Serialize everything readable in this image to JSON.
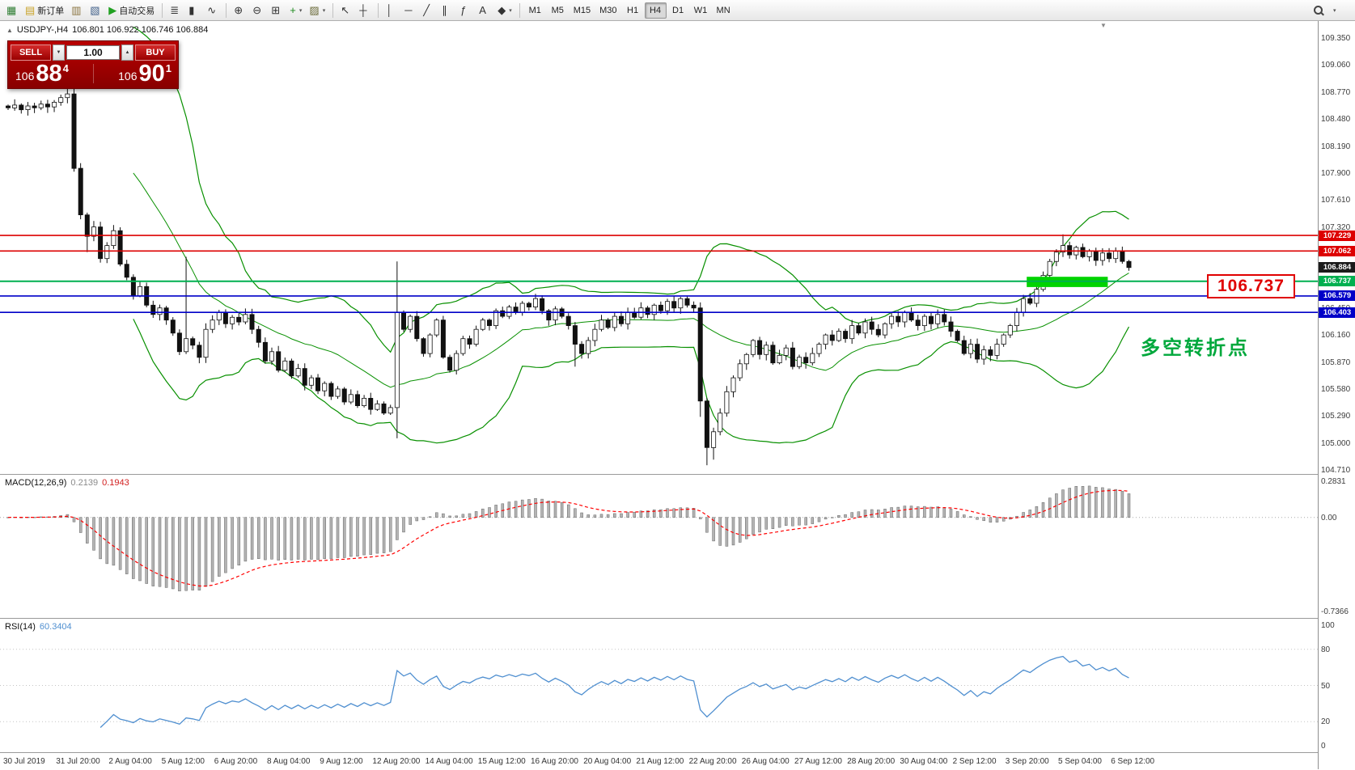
{
  "toolbar": {
    "items": [
      {
        "name": "new-chart-icon",
        "glyph": "▦",
        "color": "#2e7d32"
      },
      {
        "name": "new-order-button",
        "glyph": "▤",
        "color": "#c8a227",
        "label": "新订单"
      },
      {
        "name": "profiles-icon",
        "glyph": "▥",
        "color": "#8a7440"
      },
      {
        "name": "data-window-icon",
        "glyph": "▧",
        "color": "#46648c"
      },
      {
        "name": "autotrading-button",
        "glyph": "▶",
        "color": "#21a121",
        "label": "自动交易"
      },
      {
        "sep": true
      },
      {
        "name": "bar-chart-icon",
        "glyph": "≣",
        "color": "#333333"
      },
      {
        "name": "candlestick-chart-icon",
        "glyph": "▮",
        "color": "#333333"
      },
      {
        "name": "line-chart-icon",
        "glyph": "∿",
        "color": "#333333"
      },
      {
        "sep": true
      },
      {
        "name": "zoom-in-icon",
        "glyph": "⊕",
        "color": "#333333"
      },
      {
        "name": "zoom-out-icon",
        "glyph": "⊖",
        "color": "#333333"
      },
      {
        "name": "tile-windows-icon",
        "glyph": "⊞",
        "color": "#333333"
      },
      {
        "name": "indicators-icon",
        "glyph": "+",
        "color": "#1d8a1d",
        "caret": true
      },
      {
        "name": "templates-icon",
        "glyph": "▨",
        "color": "#6b6b3a",
        "caret": true
      },
      {
        "sep": true
      },
      {
        "name": "cursor-icon",
        "glyph": "↖",
        "color": "#333333"
      },
      {
        "name": "crosshair-icon",
        "glyph": "┼",
        "color": "#333333"
      },
      {
        "sep": true
      },
      {
        "name": "vertical-line-icon",
        "glyph": "│",
        "color": "#333333"
      },
      {
        "name": "horizontal-line-icon",
        "glyph": "─",
        "color": "#333333"
      },
      {
        "name": "trendline-icon",
        "glyph": "╱",
        "color": "#333333"
      },
      {
        "name": "channel-icon",
        "glyph": "∥",
        "color": "#333333"
      },
      {
        "name": "fibonacci-icon",
        "glyph": "ƒ",
        "color": "#333333"
      },
      {
        "name": "text-icon",
        "glyph": "A",
        "color": "#333333"
      },
      {
        "name": "arrows-icon",
        "glyph": "◆",
        "color": "#333333",
        "caret": true
      },
      {
        "sep": true
      }
    ],
    "timeframes": [
      "M1",
      "M5",
      "M15",
      "M30",
      "H1",
      "H4",
      "D1",
      "W1",
      "MN"
    ],
    "active_timeframe": "H4"
  },
  "icons": {
    "spin_up": "▲",
    "spin_down": "▼",
    "title_arrow": "▲",
    "shift_marker": "▼",
    "caret": "▾"
  },
  "chart": {
    "symbol_title": "USDJPY-,H4",
    "ohlc_text": "106.801 106.922 106.746 106.884",
    "trade_panel": {
      "sell_label": "SELL",
      "buy_label": "BUY",
      "lot": "1.00",
      "bid_small": "106",
      "bid_big": "88",
      "bid_sup": "4",
      "ask_small": "106",
      "ask_big": "90",
      "ask_sup": "1"
    },
    "annotations": {
      "callout_price": "106.737",
      "cn_note": "多空转折点"
    },
    "hlines": [
      {
        "price": 107.229,
        "label": "107.229",
        "color": "#dd0000",
        "width": 1.6
      },
      {
        "price": 107.062,
        "label": "107.062",
        "color": "#dd0000",
        "width": 1.6
      },
      {
        "price": 106.737,
        "label": "106.737",
        "color": "#00b050",
        "width": 2
      },
      {
        "price": 106.579,
        "label": "106.579",
        "color": "#0000c8",
        "width": 1.6
      },
      {
        "price": 106.403,
        "label": "106.403",
        "color": "#0000c8",
        "width": 1.6
      }
    ],
    "current_price": {
      "price": 106.884,
      "label": "106.884",
      "color": "#1b1b1b"
    },
    "price_ticks": [
      "109.350",
      "109.060",
      "108.770",
      "108.480",
      "108.190",
      "107.900",
      "107.610",
      "107.320",
      "107.030",
      "106.740",
      "106.450",
      "106.160",
      "105.870",
      "105.580",
      "105.290",
      "105.000",
      "104.710"
    ],
    "zone": {
      "price_top": 106.785,
      "price_bottom": 106.675,
      "from_index": 154.5,
      "to_index": 166.8,
      "color": "#00d300"
    }
  },
  "indicators": {
    "macd": {
      "label": "MACD(12,26,9)",
      "value_main": "0.2139",
      "value_signal": "0.1943",
      "scale_top": "0.2831",
      "scale_zero": "0.00",
      "scale_bottom": "-0.7366"
    },
    "rsi": {
      "label": "RSI(14)",
      "value": "60.3404",
      "ticks": [
        "100",
        "80",
        "50",
        "20",
        "0"
      ]
    }
  },
  "time_axis": {
    "label_every": 8,
    "labels": [
      "30 Jul 2019",
      "31 Jul 20:00",
      "2 Aug 04:00",
      "5 Aug 12:00",
      "6 Aug 20:00",
      "8 Aug 04:00",
      "9 Aug 12:00",
      "12 Aug 20:00",
      "14 Aug 04:00",
      "15 Aug 12:00",
      "16 Aug 20:00",
      "20 Aug 04:00",
      "21 Aug 12:00",
      "22 Aug 20:00",
      "26 Aug 04:00",
      "27 Aug 12:00",
      "28 Aug 20:00",
      "30 Aug 04:00",
      "2 Sep 12:00",
      "3 Sep 20:00",
      "5 Sep 04:00",
      "6 Sep 12:00"
    ]
  },
  "chart_data": {
    "type": "candlestick+indicators",
    "symbol": "USDJPY",
    "timeframe": "H4",
    "price_range": [
      104.71,
      109.35
    ],
    "closes": [
      108.6,
      108.63,
      108.58,
      108.62,
      108.6,
      108.64,
      108.61,
      108.66,
      108.71,
      108.75,
      107.95,
      107.45,
      107.22,
      107.32,
      106.98,
      107.12,
      107.28,
      106.92,
      106.78,
      106.58,
      106.68,
      106.48,
      106.38,
      106.45,
      106.32,
      106.18,
      105.98,
      106.12,
      106.05,
      105.92,
      106.22,
      106.32,
      106.4,
      106.28,
      106.35,
      106.3,
      106.38,
      106.22,
      106.08,
      105.88,
      105.98,
      105.78,
      105.88,
      105.72,
      105.8,
      105.62,
      105.7,
      105.56,
      105.64,
      105.5,
      105.58,
      105.44,
      105.52,
      105.4,
      105.48,
      105.36,
      105.42,
      105.32,
      105.38,
      106.4,
      106.22,
      106.36,
      106.12,
      105.96,
      106.16,
      106.32,
      105.92,
      105.78,
      105.96,
      106.12,
      106.06,
      106.22,
      106.32,
      106.26,
      106.42,
      106.36,
      106.46,
      106.4,
      106.5,
      106.46,
      106.55,
      106.42,
      106.32,
      106.44,
      106.36,
      106.26,
      106.06,
      105.96,
      106.1,
      106.22,
      106.32,
      106.24,
      106.36,
      106.28,
      106.4,
      106.35,
      106.45,
      106.38,
      106.48,
      106.42,
      106.52,
      106.45,
      106.55,
      106.48,
      106.45,
      105.45,
      104.95,
      105.12,
      105.32,
      105.55,
      105.7,
      105.85,
      105.95,
      106.1,
      105.95,
      106.05,
      105.86,
      105.94,
      106.02,
      105.82,
      105.92,
      105.86,
      105.96,
      106.06,
      106.16,
      106.1,
      106.2,
      106.12,
      106.26,
      106.18,
      106.3,
      106.22,
      106.16,
      106.28,
      106.36,
      106.3,
      106.4,
      106.32,
      106.26,
      106.36,
      106.28,
      106.38,
      106.3,
      106.2,
      106.1,
      105.96,
      106.06,
      105.9,
      106.0,
      105.94,
      106.06,
      106.16,
      106.26,
      106.4,
      106.55,
      106.5,
      106.65,
      106.8,
      106.95,
      107.05,
      107.12,
      107.02,
      107.1,
      107.0,
      107.06,
      106.96,
      107.04,
      106.98,
      107.06,
      106.95,
      106.884
    ],
    "spikes": {
      "9": {
        "high": 108.84
      },
      "12": {
        "low": 107.05
      },
      "27": {
        "high": 107.0
      },
      "59": {
        "high": 106.95,
        "low": 105.05
      },
      "86": {
        "low": 105.82
      },
      "105": {
        "low": 105.28
      },
      "106": {
        "low": 104.76
      },
      "107": {
        "low": 104.82
      },
      "160": {
        "high": 107.24
      }
    },
    "bollinger": {
      "period": 20,
      "deviation": 2
    },
    "macd": {
      "fast": 12,
      "slow": 26,
      "signal": 9,
      "range": [
        -0.7366,
        0.2831
      ]
    },
    "rsi": {
      "period": 14,
      "range": [
        0,
        100
      ]
    }
  }
}
